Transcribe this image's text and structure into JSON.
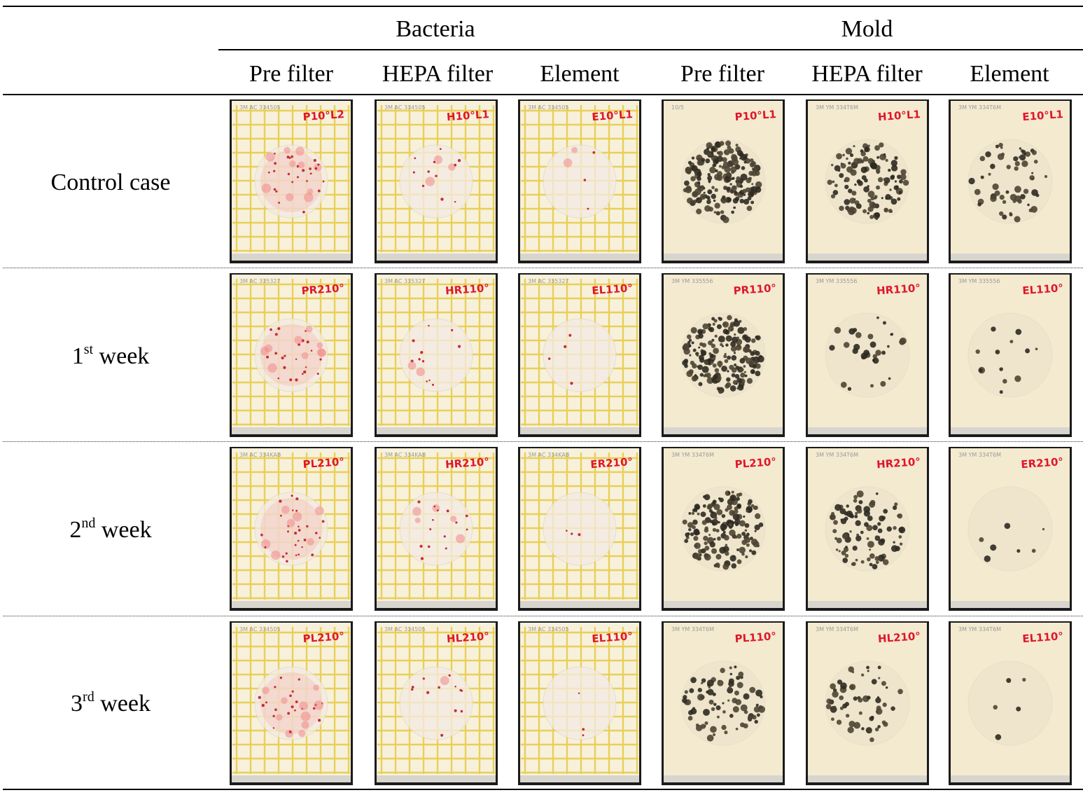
{
  "groups": [
    "Bacteria",
    "Mold"
  ],
  "columns": [
    "Pre filter",
    "HEPA filter",
    "Element",
    "Pre filter",
    "HEPA filter",
    "Element"
  ],
  "rows": [
    {
      "label": "Control case",
      "sup": "",
      "suffix": ""
    },
    {
      "label": "1",
      "sup": "st",
      "suffix": " week"
    },
    {
      "label": "2",
      "sup": "nd",
      "suffix": " week"
    },
    {
      "label": "3",
      "sup": "rd",
      "suffix": " week"
    }
  ],
  "plates": [
    [
      {
        "type": "bacteria",
        "mark": "P10°L2",
        "brand": "3M AC 334505",
        "level": 0.55
      },
      {
        "type": "bacteria",
        "mark": "H10°L1",
        "brand": "3M AC 334505",
        "level": 0.22
      },
      {
        "type": "bacteria",
        "mark": "E10°L1",
        "brand": "3M AC 334505",
        "level": 0.06
      },
      {
        "type": "mold",
        "mark": "P10°L1",
        "brand": "10/5",
        "level": 0.95
      },
      {
        "type": "mold",
        "mark": "H10°L1",
        "brand": "3M YM 334T6M",
        "level": 0.6
      },
      {
        "type": "mold",
        "mark": "E10°L1",
        "brand": "3M YM 334T6M",
        "level": 0.28
      }
    ],
    [
      {
        "type": "bacteria",
        "mark": "PR210°",
        "brand": "3M AC 335327",
        "level": 0.5
      },
      {
        "type": "bacteria",
        "mark": "HR110°",
        "brand": "3M AC 335327",
        "level": 0.2
      },
      {
        "type": "bacteria",
        "mark": "EL110°",
        "brand": "3M AC 335327",
        "level": 0.05
      },
      {
        "type": "mold",
        "mark": "PR110°",
        "brand": "3M YM 335556",
        "level": 0.9
      },
      {
        "type": "mold",
        "mark": "HR110°",
        "brand": "3M YM 335556",
        "level": 0.15
      },
      {
        "type": "mold",
        "mark": "EL110°",
        "brand": "3M YM 335556",
        "level": 0.06
      }
    ],
    [
      {
        "type": "bacteria",
        "mark": "PL210°",
        "brand": "3M AC 334KAB",
        "level": 0.55
      },
      {
        "type": "bacteria",
        "mark": "HR210°",
        "brand": "3M AC 334KAB",
        "level": 0.3
      },
      {
        "type": "bacteria",
        "mark": "ER210°",
        "brand": "3M AC 334KAB",
        "level": 0.04
      },
      {
        "type": "mold",
        "mark": "PL210°",
        "brand": "3M YM 334T6M",
        "level": 0.8
      },
      {
        "type": "mold",
        "mark": "HR210°",
        "brand": "3M YM 334T6M",
        "level": 0.45
      },
      {
        "type": "mold",
        "mark": "ER210°",
        "brand": "3M YM 334T6M",
        "level": 0.03
      }
    ],
    [
      {
        "type": "bacteria",
        "mark": "PL210°",
        "brand": "3M AC 334505",
        "level": 0.5
      },
      {
        "type": "bacteria",
        "mark": "HL210°",
        "brand": "3M AC 334505",
        "level": 0.2
      },
      {
        "type": "bacteria",
        "mark": "EL110°",
        "brand": "3M AC 334505",
        "level": 0.04
      },
      {
        "type": "mold",
        "mark": "PL110°",
        "brand": "3M YM 334T6M",
        "level": 0.4
      },
      {
        "type": "mold",
        "mark": "HL210°",
        "brand": "3M YM 334T6M",
        "level": 0.28
      },
      {
        "type": "mold",
        "mark": "EL110°",
        "brand": "3M YM 334T6M",
        "level": 0.02
      }
    ]
  ]
}
